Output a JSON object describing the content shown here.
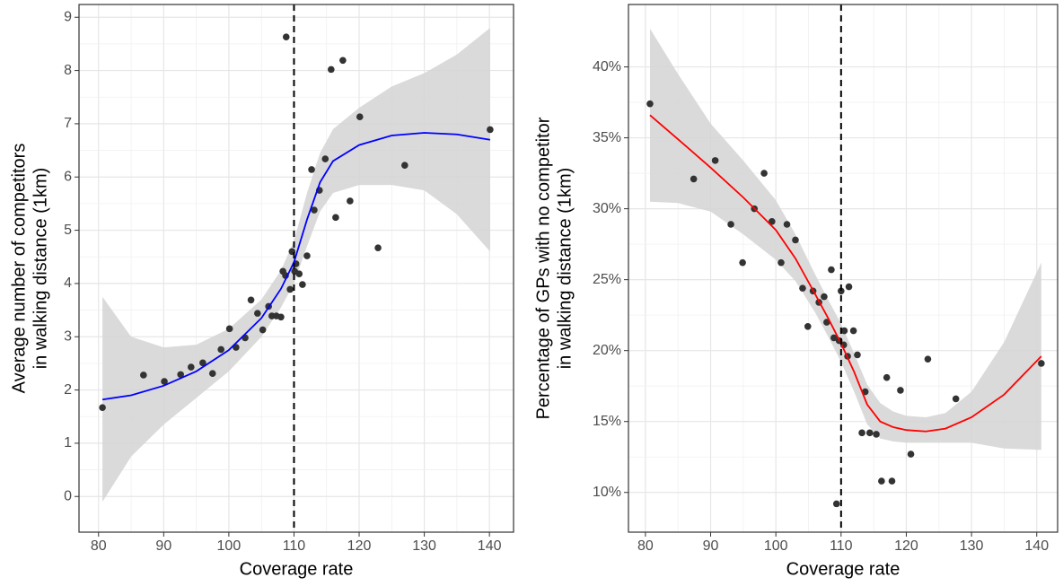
{
  "chart_data": [
    {
      "type": "scatter",
      "xlabel": "Coverage rate",
      "ylabel": [
        "Average number of competitors",
        "in walking distance (1km)"
      ],
      "x": [
        80.6,
        86.9,
        90.1,
        92.6,
        94.2,
        96.0,
        97.5,
        98.8,
        100.1,
        101.1,
        102.5,
        103.4,
        104.4,
        105.2,
        106.1,
        106.6,
        107.3,
        108.0,
        108.3,
        108.7,
        108.8,
        109.4,
        109.7,
        110.1,
        110.3,
        110.8,
        111.3,
        112.0,
        112.7,
        113.1,
        113.9,
        114.8,
        115.7,
        116.4,
        117.5,
        118.6,
        120.1,
        122.9,
        127.0,
        140.1
      ],
      "y": [
        1.67,
        2.28,
        2.16,
        2.29,
        2.43,
        2.51,
        2.31,
        2.76,
        3.15,
        2.8,
        2.98,
        3.69,
        3.44,
        3.13,
        3.57,
        3.39,
        3.39,
        3.37,
        4.23,
        4.15,
        8.63,
        3.89,
        4.6,
        4.23,
        4.37,
        4.18,
        3.98,
        4.52,
        6.14,
        5.38,
        5.75,
        6.34,
        8.02,
        5.24,
        8.19,
        5.55,
        7.13,
        4.67,
        6.22,
        6.89
      ],
      "point_color": "#333333",
      "smooth": {
        "x": [
          80.6,
          85,
          90,
          95,
          100,
          105,
          108,
          110,
          112,
          114,
          116,
          120,
          125,
          130,
          135,
          140.1
        ],
        "y": [
          1.82,
          1.9,
          2.08,
          2.35,
          2.75,
          3.35,
          3.9,
          4.4,
          5.2,
          5.9,
          6.3,
          6.6,
          6.78,
          6.83,
          6.8,
          6.7
        ],
        "lower": [
          -0.1,
          0.75,
          1.35,
          1.85,
          2.35,
          3.0,
          3.55,
          4.0,
          4.7,
          5.35,
          5.7,
          5.85,
          5.85,
          5.75,
          5.3,
          4.6
        ],
        "upper": [
          3.75,
          3.0,
          2.8,
          2.85,
          3.15,
          3.7,
          4.25,
          4.8,
          5.7,
          6.45,
          6.9,
          7.3,
          7.7,
          7.95,
          8.3,
          8.8
        ],
        "color": "#0000ff",
        "band_color": "#d3d3d3"
      },
      "vline": 110,
      "xlim": [
        77.0,
        143.7
      ],
      "ylim": [
        -0.67,
        9.24
      ],
      "xticks": [
        80,
        90,
        100,
        110,
        120,
        130,
        140
      ],
      "yticks": [
        0,
        1,
        2,
        3,
        4,
        5,
        6,
        7,
        8,
        9
      ],
      "grid": true
    },
    {
      "type": "scatter",
      "xlabel": "Coverage rate",
      "ylabel": [
        "Percentage of GPs with no competitor",
        "in walking distance (1km)"
      ],
      "x": [
        80.7,
        87.4,
        90.7,
        93.1,
        94.9,
        96.7,
        98.2,
        99.4,
        100.8,
        101.7,
        103.0,
        104.1,
        104.9,
        105.7,
        106.6,
        107.4,
        107.8,
        108.5,
        108.9,
        109.3,
        109.7,
        110.0,
        110.4,
        110.5,
        111.0,
        111.2,
        111.9,
        112.5,
        113.2,
        113.7,
        114.4,
        115.4,
        116.2,
        117.0,
        117.8,
        119.1,
        120.7,
        123.3,
        127.6,
        140.7
      ],
      "y": [
        37.4,
        32.1,
        33.4,
        28.9,
        26.2,
        30.0,
        32.5,
        29.1,
        26.2,
        28.9,
        27.8,
        24.4,
        21.7,
        24.2,
        23.4,
        23.8,
        22.0,
        25.7,
        20.9,
        9.2,
        20.7,
        24.2,
        20.4,
        21.4,
        19.6,
        24.5,
        21.4,
        19.7,
        14.2,
        17.1,
        14.2,
        14.1,
        10.8,
        18.1,
        10.8,
        17.2,
        12.7,
        19.4,
        16.6,
        19.1
      ],
      "point_color": "#333333",
      "smooth": {
        "x": [
          80.7,
          85,
          90,
          95,
          100,
          103,
          106,
          108,
          110,
          112,
          114,
          116,
          118,
          120,
          123,
          126,
          130,
          135,
          140.7
        ],
        "y": [
          36.6,
          34.9,
          32.9,
          30.8,
          28.5,
          26.5,
          24.0,
          22.3,
          20.5,
          18.5,
          16.2,
          15.0,
          14.6,
          14.4,
          14.3,
          14.5,
          15.3,
          16.9,
          19.6
        ],
        "lower": [
          30.5,
          30.4,
          29.8,
          28.2,
          26.4,
          24.9,
          22.7,
          21.0,
          19.2,
          17.1,
          14.8,
          13.8,
          13.6,
          13.5,
          13.5,
          13.5,
          13.5,
          13.1,
          13.0
        ],
        "upper": [
          42.7,
          39.5,
          36.0,
          33.4,
          30.6,
          28.2,
          25.4,
          23.6,
          21.9,
          19.8,
          17.6,
          16.3,
          15.7,
          15.4,
          15.3,
          15.6,
          17.1,
          20.6,
          26.2
        ],
        "color": "#ff0000",
        "band_color": "#d3d3d3"
      },
      "vline": 110,
      "xlim": [
        77.4,
        143.2
      ],
      "ylim": [
        7.2,
        44.4
      ],
      "xticks": [
        80,
        90,
        100,
        110,
        120,
        130,
        140
      ],
      "yticks": [
        {
          "value": 10,
          "label": "10%"
        },
        {
          "value": 15,
          "label": "15%"
        },
        {
          "value": 20,
          "label": "20%"
        },
        {
          "value": 25,
          "label": "25%"
        },
        {
          "value": 30,
          "label": "30%"
        },
        {
          "value": 35,
          "label": "35%"
        },
        {
          "value": 40,
          "label": "40%"
        }
      ],
      "grid": true
    }
  ]
}
